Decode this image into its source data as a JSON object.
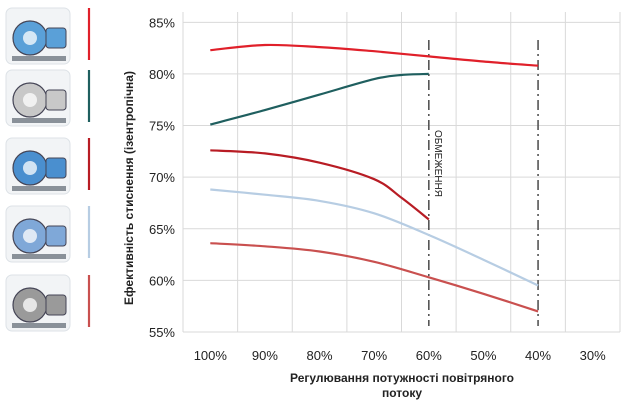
{
  "chart_data": {
    "type": "line",
    "xlabel": "Регулювання потужності повітряного потоку",
    "ylabel": "Ефективність стиснення (ізентропічна)",
    "x_categories": [
      "100%",
      "90%",
      "80%",
      "70%",
      "60%",
      "50%",
      "40%",
      "30%"
    ],
    "x_domain": [
      105,
      25
    ],
    "ylim": [
      55,
      86
    ],
    "y_ticks": [
      "55%",
      "60%",
      "65%",
      "70%",
      "75%",
      "80%",
      "85%"
    ],
    "grid": true,
    "annotation": "ОБМЕЖЕННЯ",
    "limit_lines": [
      60,
      40
    ],
    "series": [
      {
        "color": "#e0202a",
        "points": [
          [
            100,
            82.3
          ],
          [
            90,
            82.8
          ],
          [
            80,
            82.6
          ],
          [
            70,
            82.2
          ],
          [
            60,
            81.7
          ],
          [
            50,
            81.2
          ],
          [
            40,
            80.8
          ]
        ]
      },
      {
        "color": "#1f5f5f",
        "points": [
          [
            100,
            75.1
          ],
          [
            90,
            76.5
          ],
          [
            80,
            78.0
          ],
          [
            70,
            79.5
          ],
          [
            65,
            79.9
          ],
          [
            60,
            80.0
          ]
        ]
      },
      {
        "color": "#b81c24",
        "points": [
          [
            100,
            72.6
          ],
          [
            90,
            72.3
          ],
          [
            80,
            71.4
          ],
          [
            70,
            69.8
          ],
          [
            65,
            68.0
          ],
          [
            60,
            65.9
          ]
        ]
      },
      {
        "color": "#b7cde3",
        "points": [
          [
            100,
            68.8
          ],
          [
            90,
            68.3
          ],
          [
            80,
            67.7
          ],
          [
            70,
            66.5
          ],
          [
            60,
            64.4
          ],
          [
            50,
            62.0
          ],
          [
            40,
            59.5
          ]
        ]
      },
      {
        "color": "#c9504f",
        "points": [
          [
            100,
            63.6
          ],
          [
            90,
            63.3
          ],
          [
            80,
            62.8
          ],
          [
            70,
            61.8
          ],
          [
            60,
            60.3
          ],
          [
            50,
            58.7
          ],
          [
            40,
            57.0
          ]
        ]
      }
    ]
  },
  "legend_icons": [
    {
      "name": "single-stage-centrifugal-compressor-icon",
      "color": "#e0202a",
      "tint": "#5aa0d8"
    },
    {
      "name": "multistage-centrifugal-compressor-icon",
      "color": "#1f5f5f",
      "tint": "#c8c8c8"
    },
    {
      "name": "high-speed-turbo-blower-icon",
      "color": "#b81c24",
      "tint": "#4a8fcf"
    },
    {
      "name": "rotary-screw-blower-icon",
      "color": "#b7cde3",
      "tint": "#7fa8d8"
    },
    {
      "name": "lobe-blower-icon",
      "color": "#c9504f",
      "tint": "#9a9a9a"
    }
  ]
}
